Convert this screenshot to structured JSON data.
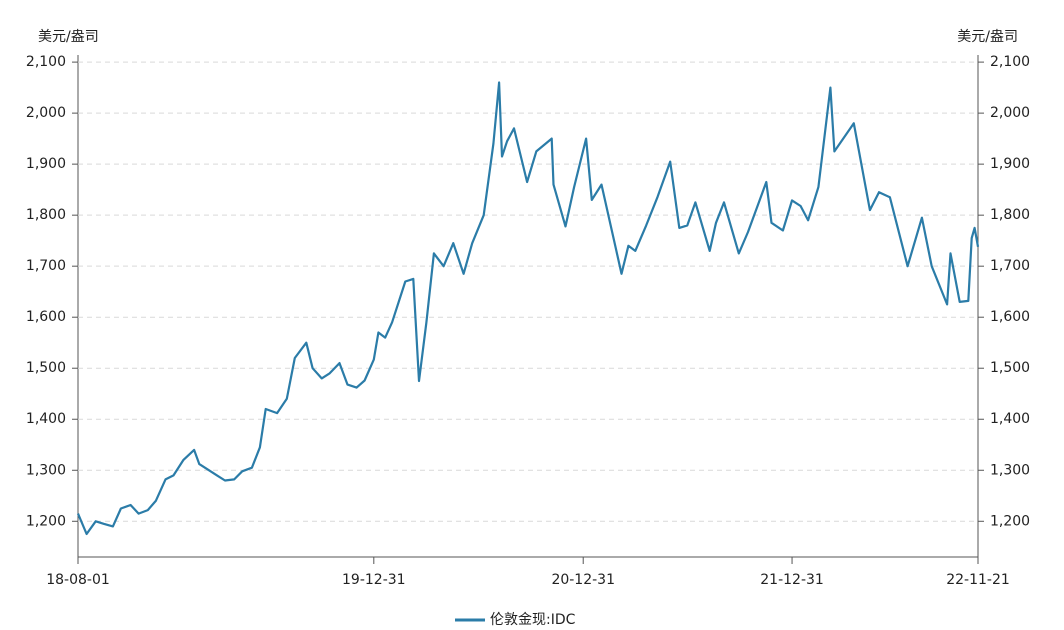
{
  "chart_data": {
    "type": "line",
    "y_label": "美元/盎司",
    "y2_label": "美元/盎司",
    "x": [
      "18-08-01",
      "18-08-16",
      "18-09-01",
      "18-09-15",
      "18-10-01",
      "18-10-15",
      "18-11-01",
      "18-11-15",
      "18-12-01",
      "18-12-15",
      "19-01-01",
      "19-01-15",
      "19-02-01",
      "19-02-20",
      "19-03-01",
      "19-03-15",
      "19-04-01",
      "19-04-15",
      "19-05-01",
      "19-05-15",
      "19-06-01",
      "19-06-15",
      "19-06-25",
      "19-07-15",
      "19-08-01",
      "19-08-15",
      "19-09-04",
      "19-09-15",
      "19-10-01",
      "19-10-15",
      "19-11-01",
      "19-11-15",
      "19-12-01",
      "19-12-15",
      "19-12-31",
      "20-01-08",
      "20-01-20",
      "20-02-01",
      "20-02-24",
      "20-03-09",
      "20-03-19",
      "20-04-01",
      "20-04-14",
      "20-05-01",
      "20-05-18",
      "20-06-05",
      "20-06-20",
      "20-07-10",
      "20-07-27",
      "20-08-06",
      "20-08-11",
      "20-08-20",
      "20-09-01",
      "20-09-24",
      "20-10-10",
      "20-11-06",
      "20-11-09",
      "20-11-30",
      "20-12-15",
      "21-01-05",
      "21-01-15",
      "21-02-01",
      "21-02-26",
      "21-03-08",
      "21-03-20",
      "21-04-01",
      "21-04-20",
      "21-05-10",
      "21-06-01",
      "21-06-17",
      "21-07-01",
      "21-07-15",
      "21-08-09",
      "21-08-20",
      "21-09-03",
      "21-09-29",
      "21-10-15",
      "21-11-16",
      "21-11-25",
      "21-12-15",
      "21-12-31",
      "22-01-15",
      "22-01-28",
      "22-02-15",
      "22-03-08",
      "22-03-15",
      "22-04-18",
      "22-05-16",
      "22-06-01",
      "22-06-20",
      "22-07-21",
      "22-08-15",
      "22-09-01",
      "22-09-28",
      "22-10-04",
      "22-10-20",
      "22-11-04",
      "22-11-10",
      "22-11-15",
      "22-11-21"
    ],
    "series": [
      {
        "name": "伦敦金现:IDC",
        "color": "#2b7ca8",
        "values": [
          1215,
          1175,
          1200,
          1195,
          1190,
          1225,
          1232,
          1215,
          1222,
          1240,
          1282,
          1290,
          1320,
          1340,
          1312,
          1302,
          1290,
          1280,
          1282,
          1298,
          1305,
          1345,
          1420,
          1412,
          1440,
          1520,
          1550,
          1500,
          1480,
          1490,
          1510,
          1468,
          1462,
          1476,
          1517,
          1570,
          1560,
          1590,
          1670,
          1675,
          1475,
          1590,
          1725,
          1700,
          1745,
          1685,
          1745,
          1800,
          1940,
          2060,
          1915,
          1945,
          1970,
          1865,
          1925,
          1950,
          1860,
          1778,
          1855,
          1950,
          1830,
          1860,
          1735,
          1685,
          1740,
          1730,
          1780,
          1836,
          1905,
          1775,
          1780,
          1825,
          1730,
          1785,
          1825,
          1725,
          1767,
          1865,
          1785,
          1770,
          1829,
          1818,
          1790,
          1855,
          2050,
          1925,
          1980,
          1810,
          1845,
          1835,
          1700,
          1795,
          1700,
          1625,
          1725,
          1630,
          1632,
          1755,
          1775,
          1738
        ]
      }
    ],
    "xlim": [
      "18-08-01",
      "22-11-21"
    ],
    "xticks": [
      "18-08-01",
      "19-12-31",
      "20-12-31",
      "21-12-31",
      "22-11-21"
    ],
    "ylim": [
      1130,
      2110
    ],
    "yticks": [
      {
        "value": 1200,
        "label": "1,200"
      },
      {
        "value": 1300,
        "label": "1,300"
      },
      {
        "value": 1400,
        "label": "1,400"
      },
      {
        "value": 1500,
        "label": "1,500"
      },
      {
        "value": 1600,
        "label": "1,600"
      },
      {
        "value": 1700,
        "label": "1,700"
      },
      {
        "value": 1800,
        "label": "1,800"
      },
      {
        "value": 1900,
        "label": "1,900"
      },
      {
        "value": 2000,
        "label": "2,000"
      },
      {
        "value": 2100,
        "label": "2,100"
      }
    ],
    "y2lim": [
      1130,
      2110
    ],
    "y2ticks": [
      {
        "value": 1200,
        "label": "1,200"
      },
      {
        "value": 1300,
        "label": "1,300"
      },
      {
        "value": 1400,
        "label": "1,400"
      },
      {
        "value": 1500,
        "label": "1,500"
      },
      {
        "value": 1600,
        "label": "1,600"
      },
      {
        "value": 1700,
        "label": "1,700"
      },
      {
        "value": 1800,
        "label": "1,800"
      },
      {
        "value": 1900,
        "label": "1,900"
      },
      {
        "value": 2000,
        "label": "2,000"
      },
      {
        "value": 2100,
        "label": "2,100"
      }
    ],
    "grid": true
  }
}
